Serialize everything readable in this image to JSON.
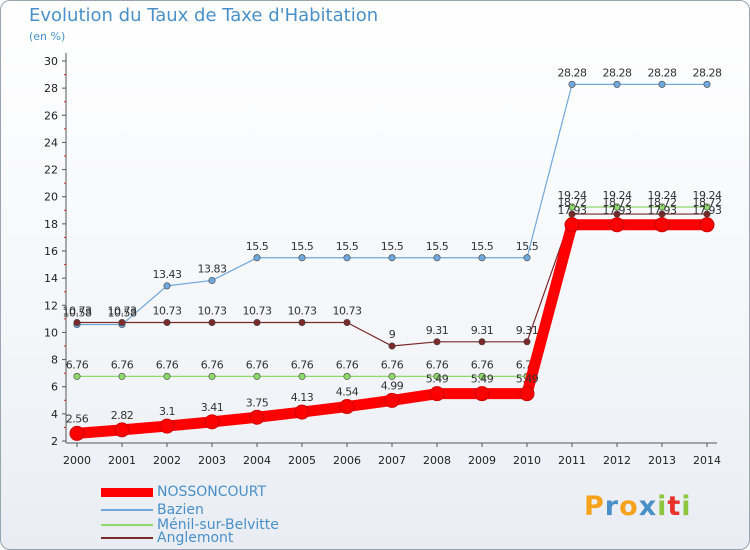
{
  "chart_data": {
    "type": "line",
    "title": "Evolution du Taux de Taxe d'Habitation",
    "subtitle": "(en %)",
    "xlabel": "",
    "ylabel": "",
    "ylim": [
      2,
      30
    ],
    "yticks": [
      2,
      4,
      6,
      8,
      10,
      12,
      14,
      16,
      18,
      20,
      22,
      24,
      26,
      28,
      30
    ],
    "x": [
      2000,
      2001,
      2002,
      2003,
      2004,
      2005,
      2006,
      2007,
      2008,
      2009,
      2010,
      2011,
      2012,
      2013,
      2014
    ],
    "grid": false,
    "legend": "bottom-left",
    "series": [
      {
        "name": "NOSSONCOURT",
        "color": "#ff0000",
        "values": [
          2.56,
          2.82,
          3.1,
          3.41,
          3.75,
          4.13,
          4.54,
          4.99,
          5.49,
          5.49,
          5.49,
          17.93,
          17.93,
          17.93,
          17.93
        ],
        "labels": [
          "2.56",
          "2.82",
          "3.1",
          "3.41",
          "3.75",
          "4.13",
          "4.54",
          "4.99",
          "5.49",
          "5.49",
          "5.49",
          "17.93",
          "17.93",
          "17.93",
          "17.93"
        ]
      },
      {
        "name": "Bazien",
        "color": "#6fa8dc",
        "values": [
          10.58,
          10.58,
          13.43,
          13.83,
          15.5,
          15.5,
          15.5,
          15.5,
          15.5,
          15.5,
          15.5,
          28.28,
          28.28,
          28.28,
          28.28
        ],
        "labels": [
          "10.58",
          "10.58",
          "13.43",
          "13.83",
          "15.5",
          "15.5",
          "15.5",
          "15.5",
          "15.5",
          "15.5",
          "15.5",
          "28.28",
          "28.28",
          "28.28",
          "28.28"
        ]
      },
      {
        "name": "Ménil-sur-Belvitte",
        "color": "#8fd86a",
        "values": [
          6.76,
          6.76,
          6.76,
          6.76,
          6.76,
          6.76,
          6.76,
          6.76,
          6.76,
          6.76,
          6.76,
          19.24,
          19.24,
          19.24,
          19.24
        ],
        "labels": [
          "6.76",
          "6.76",
          "6.76",
          "6.76",
          "6.76",
          "6.76",
          "6.76",
          "6.76",
          "6.76",
          "6.76",
          "6.76",
          "19.24",
          "19.24",
          "19.24",
          "19.24"
        ]
      },
      {
        "name": "Anglemont",
        "color": "#7b2a2a",
        "values": [
          10.73,
          10.73,
          10.73,
          10.73,
          10.73,
          10.73,
          10.73,
          9,
          9.31,
          9.31,
          9.31,
          18.72,
          18.72,
          18.72,
          18.72
        ],
        "labels": [
          "10.73",
          "10.73",
          "10.73",
          "10.73",
          "10.73",
          "10.73",
          "10.73",
          "9",
          "9.31",
          "9.31",
          "9.31",
          "18.72",
          "18.72",
          "18.72",
          "18.72"
        ]
      }
    ]
  },
  "logo": {
    "letters": [
      "P",
      "r",
      "o",
      "x",
      "i",
      "t",
      "i"
    ],
    "colors": [
      "#f7a21b",
      "#4a90c8",
      "#f7a21b",
      "#4a90c8",
      "#8dc63f",
      "#e8322b",
      "#8dc63f"
    ]
  }
}
